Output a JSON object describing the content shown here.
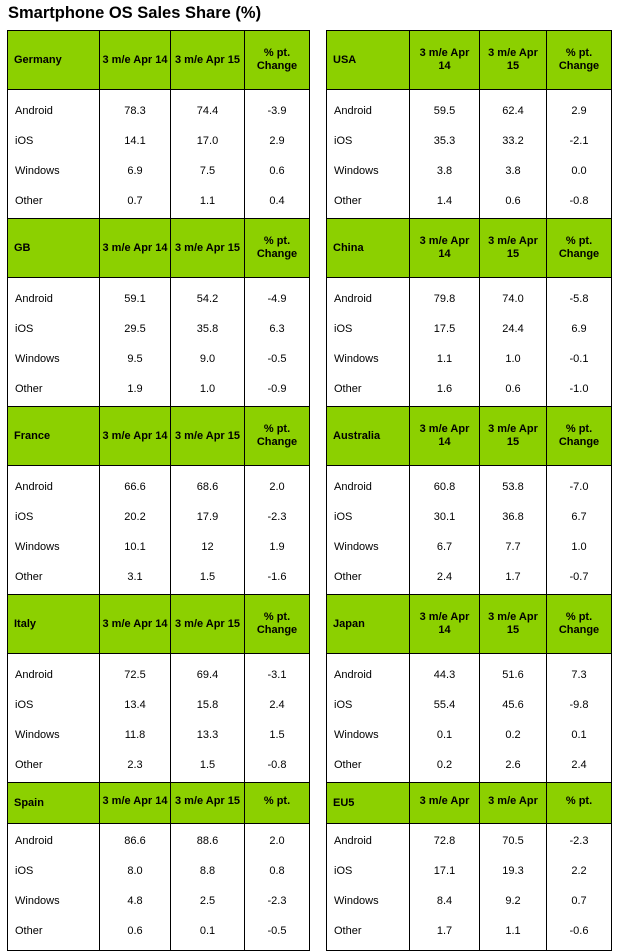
{
  "title": "Smartphone OS Sales Share (%)",
  "left": [
    {
      "country": "Germany",
      "headers": [
        "3 m/e Apr 14",
        "3 m/e Apr 15",
        "% pt.\nChange"
      ],
      "rows": [
        [
          "Android",
          "78.3",
          "74.4",
          "-3.9"
        ],
        [
          "iOS",
          "14.1",
          "17.0",
          "2.9"
        ],
        [
          "Windows",
          "6.9",
          "7.5",
          "0.6"
        ],
        [
          "Other",
          "0.7",
          "1.1",
          "0.4"
        ]
      ]
    },
    {
      "country": "GB",
      "headers": [
        "3 m/e Apr 14",
        "3 m/e Apr 15",
        "% pt.\nChange"
      ],
      "rows": [
        [
          "Android",
          "59.1",
          "54.2",
          "-4.9"
        ],
        [
          "iOS",
          "29.5",
          "35.8",
          "6.3"
        ],
        [
          "Windows",
          "9.5",
          "9.0",
          "-0.5"
        ],
        [
          "Other",
          "1.9",
          "1.0",
          "-0.9"
        ]
      ]
    },
    {
      "country": "France",
      "headers": [
        "3 m/e Apr 14",
        "3 m/e Apr 15",
        "% pt.\nChange"
      ],
      "rows": [
        [
          "Android",
          "66.6",
          "68.6",
          "2.0"
        ],
        [
          "iOS",
          "20.2",
          "17.9",
          "-2.3"
        ],
        [
          "Windows",
          "10.1",
          "12",
          "1.9"
        ],
        [
          "Other",
          "3.1",
          "1.5",
          "-1.6"
        ]
      ]
    },
    {
      "country": "Italy",
      "headers": [
        "3 m/e Apr 14",
        "3 m/e Apr 15",
        "% pt.\nChange"
      ],
      "rows": [
        [
          "Android",
          "72.5",
          "69.4",
          "-3.1"
        ],
        [
          "iOS",
          "13.4",
          "15.8",
          "2.4"
        ],
        [
          "Windows",
          "11.8",
          "13.3",
          "1.5"
        ],
        [
          "Other",
          "2.3",
          "1.5",
          "-0.8"
        ]
      ]
    },
    {
      "country": "Spain",
      "short": true,
      "headers": [
        "3 m/e Apr 14",
        "3 m/e Apr 15",
        "% pt."
      ],
      "rows": [
        [
          "Android",
          "86.6",
          "88.6",
          "2.0"
        ],
        [
          "iOS",
          "8.0",
          "8.8",
          "0.8"
        ],
        [
          "Windows",
          "4.8",
          "2.5",
          "-2.3"
        ],
        [
          "Other",
          "0.6",
          "0.1",
          "-0.5"
        ]
      ]
    }
  ],
  "right": [
    {
      "country": "USA",
      "headers": [
        "3 m/e Apr\n14",
        "3 m/e Apr\n15",
        "% pt.\nChange"
      ],
      "rows": [
        [
          "Android",
          "59.5",
          "62.4",
          "2.9"
        ],
        [
          "iOS",
          "35.3",
          "33.2",
          "-2.1"
        ],
        [
          "Windows",
          "3.8",
          "3.8",
          "0.0"
        ],
        [
          "Other",
          "1.4",
          "0.6",
          "-0.8"
        ]
      ]
    },
    {
      "country": "China",
      "headers": [
        "3 m/e Apr\n14",
        "3 m/e Apr\n15",
        "% pt.\nChange"
      ],
      "rows": [
        [
          "Android",
          "79.8",
          "74.0",
          "-5.8"
        ],
        [
          "iOS",
          "17.5",
          "24.4",
          "6.9"
        ],
        [
          "Windows",
          "1.1",
          "1.0",
          "-0.1"
        ],
        [
          "Other",
          "1.6",
          "0.6",
          "-1.0"
        ]
      ]
    },
    {
      "country": "Australia",
      "headers": [
        "3 m/e Apr\n14",
        "3 m/e Apr\n15",
        "% pt.\nChange"
      ],
      "rows": [
        [
          "Android",
          "60.8",
          "53.8",
          "-7.0"
        ],
        [
          "iOS",
          "30.1",
          "36.8",
          "6.7"
        ],
        [
          "Windows",
          "6.7",
          "7.7",
          "1.0"
        ],
        [
          "Other",
          "2.4",
          "1.7",
          "-0.7"
        ]
      ]
    },
    {
      "country": "Japan",
      "headers": [
        "3 m/e Apr\n14",
        "3 m/e Apr\n15",
        "% pt.\nChange"
      ],
      "rows": [
        [
          "Android",
          "44.3",
          "51.6",
          "7.3"
        ],
        [
          "iOS",
          "55.4",
          "45.6",
          "-9.8"
        ],
        [
          "Windows",
          "0.1",
          "0.2",
          "0.1"
        ],
        [
          "Other",
          "0.2",
          "2.6",
          "2.4"
        ]
      ]
    },
    {
      "country": "EU5",
      "short": true,
      "headers": [
        "3 m/e Apr",
        "3 m/e Apr",
        "% pt."
      ],
      "rows": [
        [
          "Android",
          "72.8",
          "70.5",
          "-2.3"
        ],
        [
          "iOS",
          "17.1",
          "19.3",
          "2.2"
        ],
        [
          "Windows",
          "8.4",
          "9.2",
          "0.7"
        ],
        [
          "Other",
          "1.7",
          "1.1",
          "-0.6"
        ]
      ]
    }
  ]
}
